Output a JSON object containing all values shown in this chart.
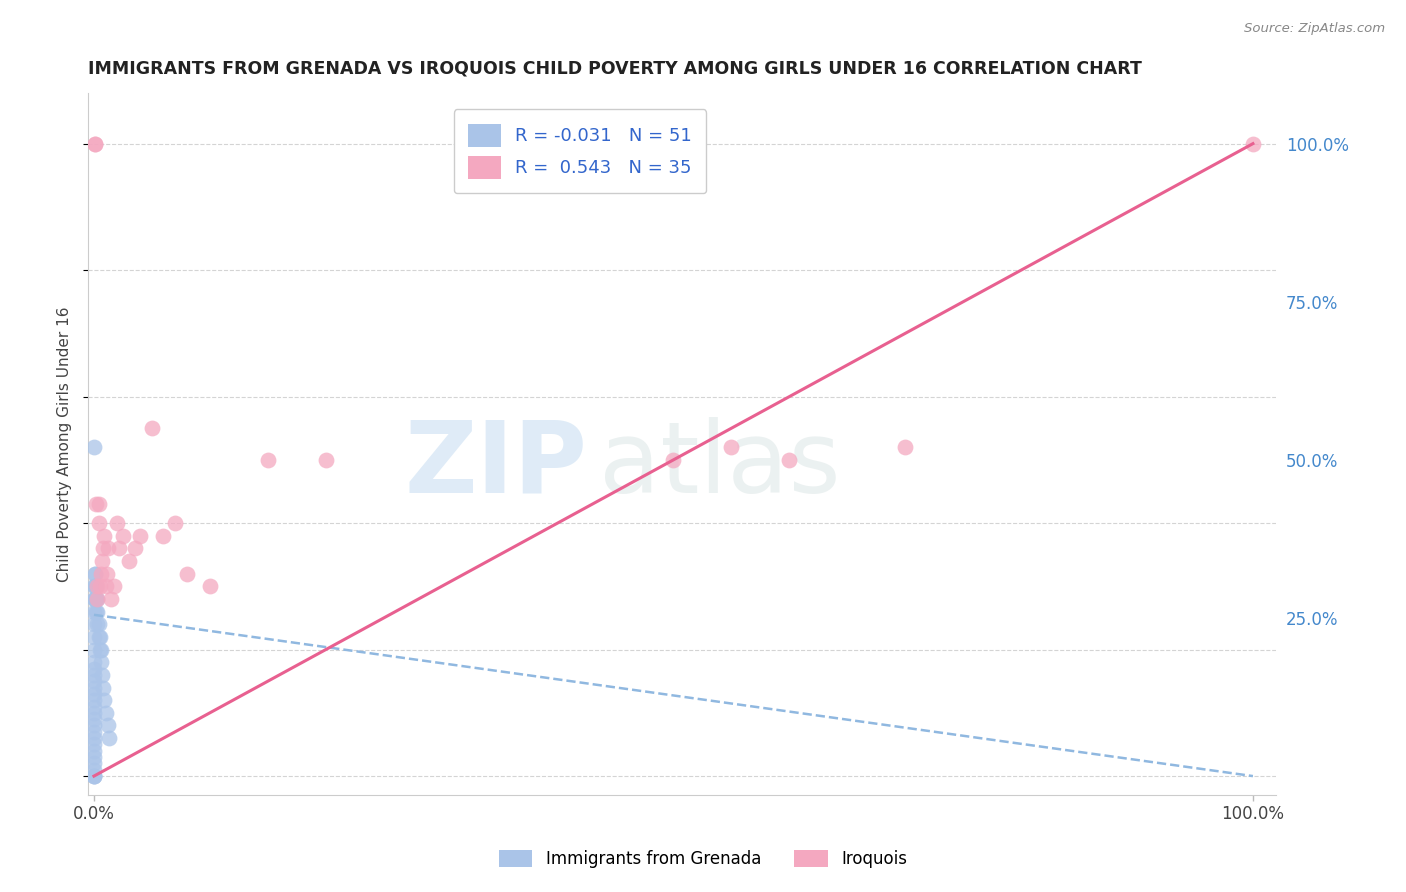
{
  "title": "IMMIGRANTS FROM GRENADA VS IROQUOIS CHILD POVERTY AMONG GIRLS UNDER 16 CORRELATION CHART",
  "source": "Source: ZipAtlas.com",
  "ylabel": "Child Poverty Among Girls Under 16",
  "watermark_top": "ZIP",
  "watermark_bot": "atlas",
  "legend_grenada_R": -0.031,
  "legend_grenada_N": 51,
  "legend_iroquois_R": 0.543,
  "legend_iroquois_N": 35,
  "bg_color": "#ffffff",
  "grid_color": "#d0d0d0",
  "scatter_grenada_color": "#aac4e8",
  "scatter_iroquois_color": "#f4a8c0",
  "line_grenada_color": "#90b8e0",
  "line_iroquois_color": "#e86090",
  "title_color": "#222222",
  "source_color": "#888888",
  "axis_label_color": "#444444",
  "tick_color_right": "#4488cc",
  "tick_color_bottom": "#444444",
  "grenada_x": [
    0.0,
    0.0,
    0.0,
    0.0,
    0.0,
    0.0,
    0.0,
    0.0,
    0.0,
    0.0,
    0.0,
    0.0,
    0.0,
    0.0,
    0.0,
    0.0,
    0.0,
    0.0,
    0.0,
    0.0,
    0.0,
    0.0,
    0.0,
    0.0,
    0.0,
    0.0,
    0.0,
    0.0,
    0.001,
    0.001,
    0.001,
    0.001,
    0.001,
    0.002,
    0.002,
    0.002,
    0.003,
    0.003,
    0.003,
    0.004,
    0.004,
    0.005,
    0.005,
    0.006,
    0.006,
    0.007,
    0.008,
    0.009,
    0.01,
    0.012,
    0.013
  ],
  "grenada_y": [
    0.0,
    0.0,
    0.0,
    0.01,
    0.02,
    0.03,
    0.04,
    0.05,
    0.06,
    0.07,
    0.08,
    0.09,
    0.1,
    0.11,
    0.12,
    0.13,
    0.14,
    0.15,
    0.16,
    0.17,
    0.18,
    0.2,
    0.22,
    0.24,
    0.26,
    0.28,
    0.3,
    0.52,
    0.28,
    0.3,
    0.32,
    0.28,
    0.32,
    0.26,
    0.28,
    0.3,
    0.24,
    0.26,
    0.28,
    0.22,
    0.24,
    0.2,
    0.22,
    0.18,
    0.2,
    0.16,
    0.14,
    0.12,
    0.1,
    0.08,
    0.06
  ],
  "iroquois_x": [
    0.001,
    0.001,
    0.002,
    0.003,
    0.003,
    0.004,
    0.004,
    0.005,
    0.006,
    0.007,
    0.008,
    0.009,
    0.01,
    0.011,
    0.012,
    0.015,
    0.017,
    0.02,
    0.022,
    0.025,
    0.03,
    0.035,
    0.04,
    0.05,
    0.06,
    0.07,
    0.08,
    0.1,
    0.15,
    0.2,
    0.5,
    0.55,
    0.6,
    0.7,
    1.0
  ],
  "iroquois_y": [
    1.0,
    1.0,
    0.43,
    0.28,
    0.3,
    0.4,
    0.43,
    0.3,
    0.32,
    0.34,
    0.36,
    0.38,
    0.3,
    0.32,
    0.36,
    0.28,
    0.3,
    0.4,
    0.36,
    0.38,
    0.34,
    0.36,
    0.38,
    0.55,
    0.38,
    0.4,
    0.32,
    0.3,
    0.5,
    0.5,
    0.5,
    0.52,
    0.5,
    0.52,
    1.0
  ],
  "grenada_line_x0": 0.0,
  "grenada_line_x1": 1.0,
  "grenada_line_y0": 0.255,
  "grenada_line_y1": 0.0,
  "iroquois_line_x0": 0.0,
  "iroquois_line_x1": 1.0,
  "iroquois_line_y0": 0.0,
  "iroquois_line_y1": 1.0,
  "xlim_min": -0.005,
  "xlim_max": 1.02,
  "ylim_min": -0.03,
  "ylim_max": 1.08
}
